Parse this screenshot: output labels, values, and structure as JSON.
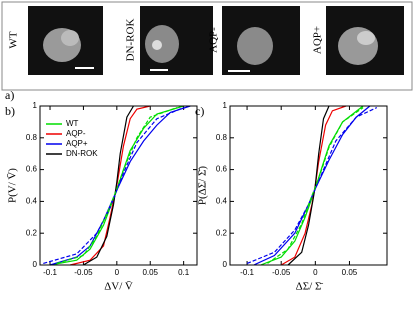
{
  "panel_a": {
    "label": "a)",
    "images": [
      {
        "label": "WT"
      },
      {
        "label": "DN-ROK"
      },
      {
        "label": "AQP-"
      },
      {
        "label": "AQP+"
      }
    ]
  },
  "chart_data": [
    {
      "type": "line",
      "label": "b)",
      "x_label": "ΔV/ V̄",
      "y_label": "P(V/ V̄)",
      "xlim": [
        -0.115,
        0.12
      ],
      "ylim": [
        0,
        1
      ],
      "xticks": [
        -0.1,
        -0.05,
        0,
        0.05,
        0.1
      ],
      "yticks": [
        0,
        0.2,
        0.4,
        0.6,
        0.8,
        1
      ],
      "legend": "upper left",
      "series": [
        {
          "name": "WT",
          "color": "#00dd00",
          "x": [
            -0.1,
            -0.06,
            -0.04,
            -0.02,
            -0.01,
            0,
            0.01,
            0.02,
            0.04,
            0.06,
            0.1
          ],
          "values": [
            0,
            0.03,
            0.1,
            0.25,
            0.36,
            0.47,
            0.6,
            0.72,
            0.86,
            0.95,
            1
          ]
        },
        {
          "name": "AQP-",
          "color": "#ee0000",
          "x": [
            -0.07,
            -0.04,
            -0.02,
            -0.01,
            0,
            0.01,
            0.02,
            0.03,
            0.05
          ],
          "values": [
            0,
            0.03,
            0.12,
            0.3,
            0.5,
            0.75,
            0.92,
            0.98,
            1
          ]
        },
        {
          "name": "AQP+",
          "color": "#0000ee",
          "x": [
            -0.1,
            -0.06,
            -0.04,
            -0.02,
            0,
            0.02,
            0.04,
            0.06,
            0.08,
            0.11
          ],
          "values": [
            0,
            0.05,
            0.12,
            0.28,
            0.47,
            0.65,
            0.78,
            0.88,
            0.96,
            1
          ]
        },
        {
          "name": "DN-ROK",
          "color": "#000000",
          "x": [
            -0.05,
            -0.03,
            -0.015,
            -0.005,
            0,
            0.005,
            0.015,
            0.025
          ],
          "values": [
            0,
            0.05,
            0.18,
            0.38,
            0.52,
            0.7,
            0.93,
            1
          ]
        },
        {
          "color": "#0000ee",
          "dashed": true,
          "x": [
            -0.11,
            -0.06,
            -0.03,
            -0.01,
            0,
            0.01,
            0.03,
            0.06,
            0.1
          ],
          "values": [
            0.01,
            0.07,
            0.2,
            0.36,
            0.47,
            0.58,
            0.77,
            0.92,
            0.99
          ]
        },
        {
          "color": "#00dd00",
          "dashed": true,
          "x": [
            -0.09,
            -0.05,
            -0.03,
            -0.01,
            0,
            0.01,
            0.03,
            0.05,
            0.09
          ],
          "values": [
            0.01,
            0.06,
            0.18,
            0.37,
            0.48,
            0.6,
            0.8,
            0.93,
            0.99
          ]
        }
      ]
    },
    {
      "type": "line",
      "label": "c)",
      "x_label": "ΔΣ/ Σ̄",
      "y_label": "P(ΔΣ/ Σ̄)",
      "xlim": [
        -0.125,
        0.105
      ],
      "ylim": [
        0,
        1
      ],
      "xticks": [
        -0.1,
        -0.05,
        0,
        0.05
      ],
      "yticks": [
        0,
        0.2,
        0.4,
        0.6,
        0.8,
        1
      ],
      "series": [
        {
          "color": "#00dd00",
          "x": [
            -0.08,
            -0.05,
            -0.03,
            -0.015,
            0,
            0.01,
            0.02,
            0.04,
            0.07
          ],
          "values": [
            0,
            0.05,
            0.15,
            0.3,
            0.48,
            0.62,
            0.75,
            0.9,
            1
          ]
        },
        {
          "color": "#ee0000",
          "x": [
            -0.05,
            -0.03,
            -0.015,
            -0.005,
            0,
            0.005,
            0.015,
            0.025,
            0.045
          ],
          "values": [
            0,
            0.05,
            0.2,
            0.38,
            0.5,
            0.65,
            0.88,
            0.97,
            1
          ]
        },
        {
          "color": "#0000ee",
          "x": [
            -0.09,
            -0.06,
            -0.03,
            -0.01,
            0,
            0.02,
            0.04,
            0.06,
            0.08
          ],
          "values": [
            0,
            0.06,
            0.2,
            0.38,
            0.48,
            0.66,
            0.82,
            0.93,
            1
          ]
        },
        {
          "color": "#000000",
          "x": [
            -0.04,
            -0.02,
            -0.01,
            -0.003,
            0,
            0.005,
            0.012,
            0.02
          ],
          "values": [
            0,
            0.08,
            0.25,
            0.42,
            0.5,
            0.7,
            0.92,
            1
          ]
        },
        {
          "color": "#0000ee",
          "dashed": true,
          "x": [
            -0.1,
            -0.06,
            -0.03,
            -0.01,
            0,
            0.01,
            0.03,
            0.06,
            0.09
          ],
          "values": [
            0.01,
            0.08,
            0.22,
            0.38,
            0.48,
            0.58,
            0.78,
            0.93,
            0.99
          ]
        },
        {
          "color": "#00dd00",
          "dashed": true,
          "x": [
            -0.07,
            -0.04,
            -0.02,
            -0.01,
            0,
            0.01,
            0.02,
            0.04,
            0.07
          ],
          "values": [
            0.01,
            0.1,
            0.26,
            0.38,
            0.49,
            0.61,
            0.74,
            0.9,
            0.99
          ]
        }
      ]
    }
  ]
}
